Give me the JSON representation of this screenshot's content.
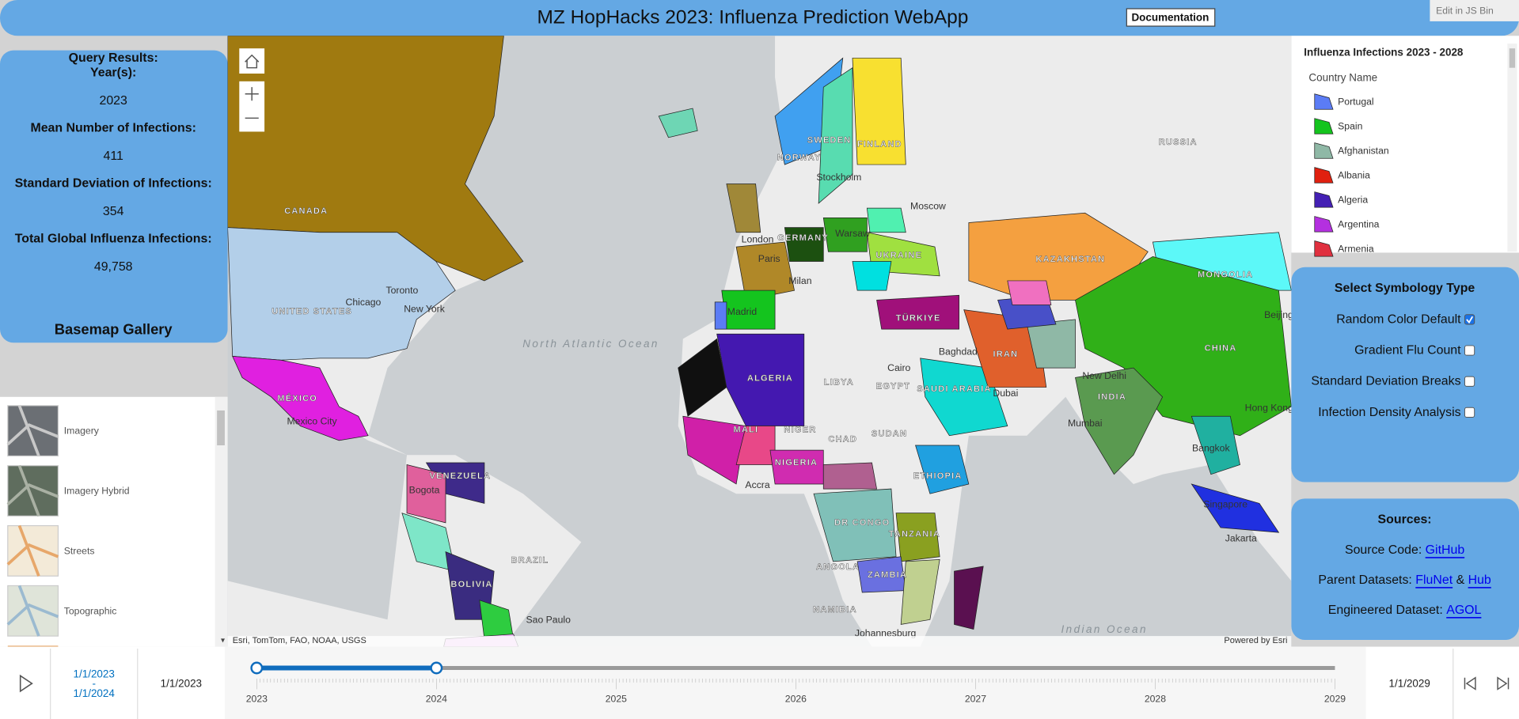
{
  "header": {
    "title": "MZ HopHacks 2023: Influenza Prediction WebApp",
    "documentation_button": "Documentation",
    "edit_link": "Edit in JS Bin"
  },
  "query_results": {
    "heading": "Query Results:",
    "fields": [
      {
        "label": "Year(s):",
        "value": "2023"
      },
      {
        "label": "Mean Number of Infections:",
        "value": "411"
      },
      {
        "label": "Standard Deviation of Infections:",
        "value": "354"
      },
      {
        "label": "Total Global Influenza Infections:",
        "value": "49,758"
      }
    ]
  },
  "basemap_gallery": {
    "title": "Basemap Gallery",
    "items": [
      "Imagery",
      "Imagery Hybrid",
      "Streets",
      "Topographic"
    ]
  },
  "map": {
    "labels": [
      "CANADA",
      "UNITED STATES",
      "Chicago",
      "Toronto",
      "New York",
      "MÉXICO",
      "Mexico City",
      "North Atlantic Ocean",
      "BRAZIL",
      "Bogota",
      "VENEZUELA",
      "BOLIVIA",
      "Sao Paulo",
      "ALGERIA",
      "MALI",
      "NIGERIA",
      "Accra",
      "NIGER",
      "CHAD",
      "SUDAN",
      "LIBYA",
      "EGYPT",
      "Cairo",
      "ETHIOPIA",
      "DR CONGO",
      "TANZANIA",
      "ZAMBIA",
      "ANGOLA",
      "NAMIBIA",
      "Johannesburg",
      "Madrid",
      "Paris",
      "London",
      "Milan",
      "GERMANY",
      "Warsaw",
      "Stockholm",
      "FINLAND",
      "SWEDEN",
      "NORWAY",
      "Moscow",
      "UKRAINE",
      "TÜRKIYE",
      "Baghdad",
      "IRAN",
      "SAUDI ARABIA",
      "Dubai",
      "KAZAKHSTAN",
      "RUSSIA",
      "MONGOLIA",
      "CHINA",
      "Beijing",
      "New Delhi",
      "INDIA",
      "Mumbai",
      "Bangkok",
      "Hong Kong",
      "Singapore",
      "Jakarta",
      "Indian Ocean"
    ],
    "attribution": "Esri, TomTom, FAO, NOAA, USGS",
    "powered_by": "Powered by Esri"
  },
  "legend": {
    "title": "Influenza Infections 2023 - 2028",
    "field": "Country Name",
    "items": [
      {
        "name": "Portugal",
        "color": "#5b7cf5"
      },
      {
        "name": "Spain",
        "color": "#14c41e"
      },
      {
        "name": "Afghanistan",
        "color": "#8fb8a6"
      },
      {
        "name": "Albania",
        "color": "#e0200f"
      },
      {
        "name": "Algeria",
        "color": "#4420b4"
      },
      {
        "name": "Argentina",
        "color": "#b430e0"
      },
      {
        "name": "Armenia",
        "color": "#e0303f"
      }
    ]
  },
  "symbology": {
    "title": "Select Symbology Type",
    "options": [
      {
        "label": "Random Color Default",
        "checked": true
      },
      {
        "label": "Gradient Flu Count",
        "checked": false
      },
      {
        "label": "Standard Deviation Breaks",
        "checked": false
      },
      {
        "label": "Infection Density Analysis",
        "checked": false
      }
    ]
  },
  "sources": {
    "title": "Sources:",
    "lines": [
      {
        "prefix": "Source Code:",
        "links": [
          "GitHub"
        ]
      },
      {
        "prefix": "Parent Datasets:",
        "links": [
          "FluNet",
          "Hub"
        ],
        "joiner": "&"
      },
      {
        "prefix": "Engineered Dataset:",
        "links": [
          "AGOL"
        ]
      }
    ]
  },
  "time_slider": {
    "range_start": "1/1/2023",
    "range_separator": "-",
    "range_end": "1/1/2024",
    "min_label": "1/1/2023",
    "max_label": "1/1/2029",
    "ticks": [
      "2023",
      "2024",
      "2025",
      "2026",
      "2027",
      "2028",
      "2029"
    ]
  }
}
